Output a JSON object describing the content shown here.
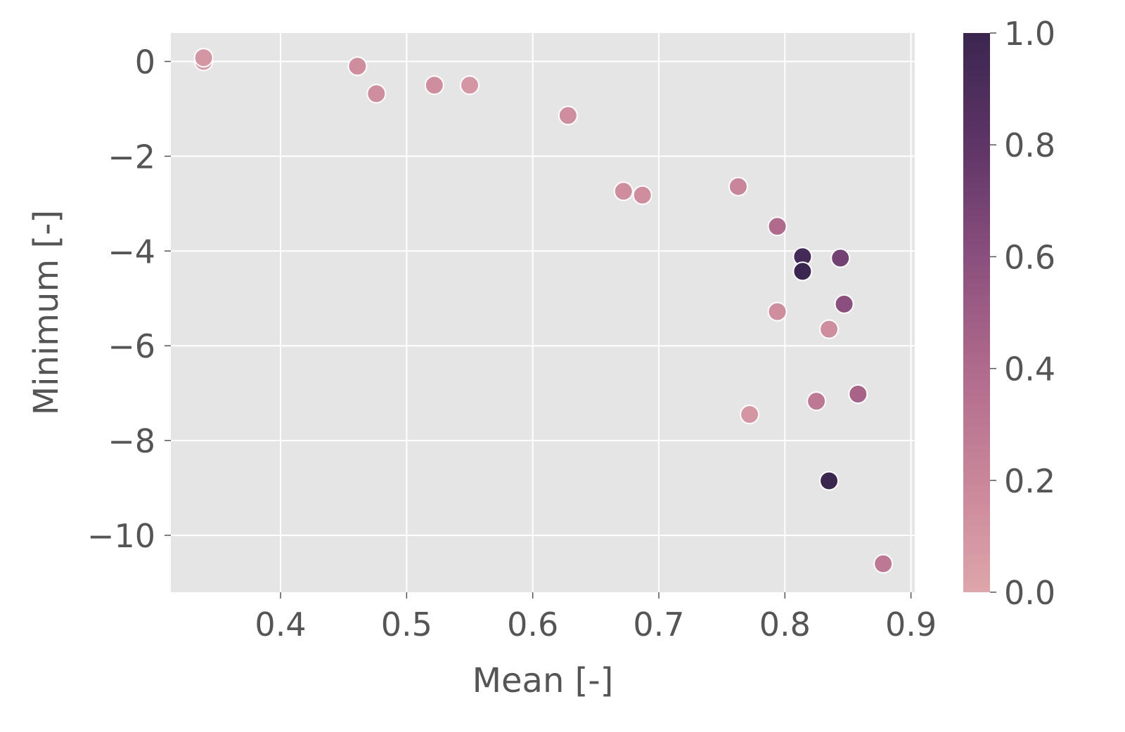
{
  "chart_data": {
    "type": "scatter",
    "title": "",
    "xlabel": "Mean [-]",
    "ylabel": "Minimum [-]",
    "xlim": [
      0.313,
      0.903
    ],
    "ylim": [
      -11.2,
      0.6
    ],
    "xticks": [
      0.4,
      0.5,
      0.6,
      0.7,
      0.8,
      0.9
    ],
    "xtick_labels": [
      "0.4",
      "0.5",
      "0.6",
      "0.7",
      "0.8",
      "0.9"
    ],
    "yticks": [
      0,
      -2,
      -4,
      -6,
      -8,
      -10
    ],
    "ytick_labels": [
      "0",
      "−2",
      "−4",
      "−6",
      "−8",
      "−10"
    ],
    "grid": true,
    "background": "#e5e5e5",
    "colorbar": {
      "range": [
        0,
        1
      ],
      "ticks": [
        0.0,
        0.2,
        0.4,
        0.6,
        0.8,
        1.0
      ],
      "tick_labels": [
        "0.0",
        "0.2",
        "0.4",
        "0.6",
        "0.8",
        "1.0"
      ],
      "colors": [
        "#dea5aa",
        "#c9869a",
        "#b06a8c",
        "#8a4f7d",
        "#5e3566",
        "#3b2650"
      ]
    },
    "points": [
      {
        "x": 0.339,
        "y": 0.0,
        "c": 0.05
      },
      {
        "x": 0.339,
        "y": 0.08,
        "c": 0.1
      },
      {
        "x": 0.461,
        "y": -0.1,
        "c": 0.15
      },
      {
        "x": 0.476,
        "y": -0.68,
        "c": 0.15
      },
      {
        "x": 0.522,
        "y": -0.5,
        "c": 0.15
      },
      {
        "x": 0.55,
        "y": -0.5,
        "c": 0.1
      },
      {
        "x": 0.628,
        "y": -1.14,
        "c": 0.15
      },
      {
        "x": 0.672,
        "y": -2.74,
        "c": 0.15
      },
      {
        "x": 0.687,
        "y": -2.82,
        "c": 0.15
      },
      {
        "x": 0.763,
        "y": -2.64,
        "c": 0.2
      },
      {
        "x": 0.794,
        "y": -3.48,
        "c": 0.4
      },
      {
        "x": 0.814,
        "y": -4.12,
        "c": 0.95
      },
      {
        "x": 0.814,
        "y": -4.43,
        "c": 1.0
      },
      {
        "x": 0.844,
        "y": -4.15,
        "c": 0.7
      },
      {
        "x": 0.847,
        "y": -5.12,
        "c": 0.6
      },
      {
        "x": 0.794,
        "y": -5.28,
        "c": 0.15
      },
      {
        "x": 0.835,
        "y": -5.65,
        "c": 0.15
      },
      {
        "x": 0.858,
        "y": -7.02,
        "c": 0.45
      },
      {
        "x": 0.825,
        "y": -7.17,
        "c": 0.3
      },
      {
        "x": 0.772,
        "y": -7.45,
        "c": 0.1
      },
      {
        "x": 0.835,
        "y": -8.85,
        "c": 1.0
      },
      {
        "x": 0.878,
        "y": -10.6,
        "c": 0.3
      }
    ]
  }
}
